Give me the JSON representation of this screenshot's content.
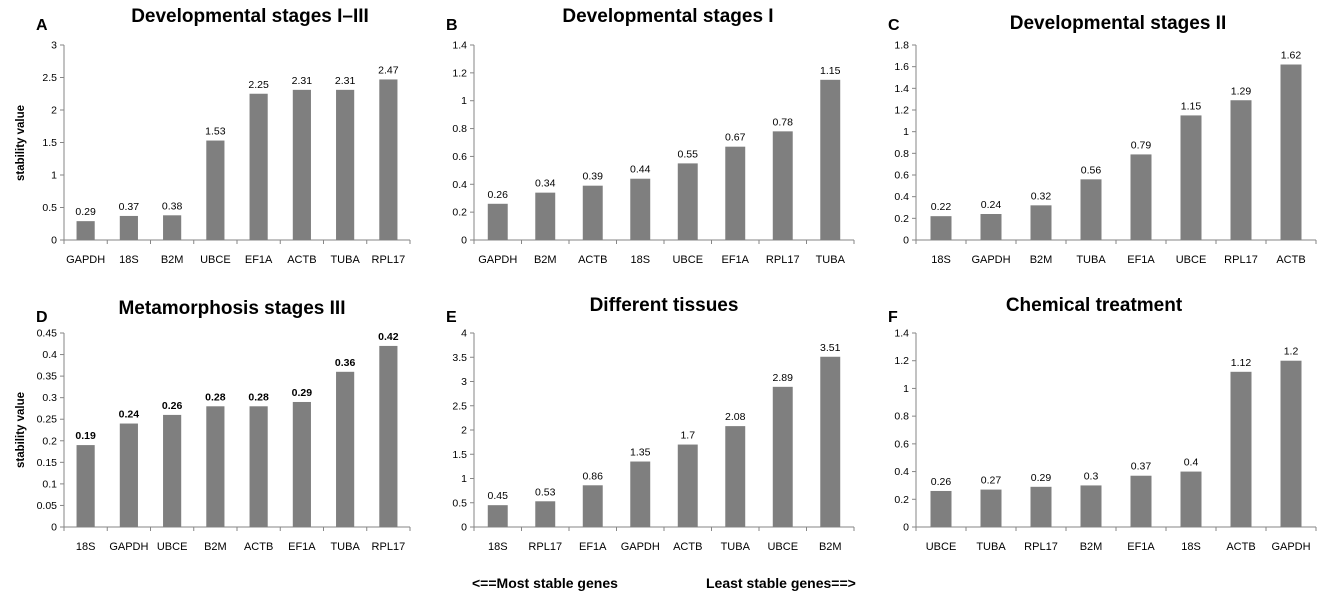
{
  "colors": {
    "bar": "#7f7f7f",
    "axis": "#868686",
    "text": "#000000"
  },
  "footnote": {
    "left": "<==Most stable genes",
    "right": "Least stable genes==>"
  },
  "chart_data": [
    {
      "panel": "A",
      "type": "bar",
      "title": "Developmental stages I–III",
      "ylabel": "stability value",
      "ylim": [
        0,
        3
      ],
      "ystep": 0.5,
      "yticks": [
        "0",
        "0.5",
        "1",
        "1.5",
        "2",
        "2.5",
        "3"
      ],
      "categories": [
        "GAPDH",
        "18S",
        "B2M",
        "UBCE",
        "EF1A",
        "ACTB",
        "TUBA",
        "RPL17"
      ],
      "values": [
        0.29,
        0.37,
        0.38,
        1.53,
        2.25,
        2.31,
        2.31,
        2.47
      ],
      "labels": [
        "0.29",
        "0.37",
        "0.38",
        "1.53",
        "2.25",
        "2.31",
        "2.31",
        "2.47"
      ],
      "bold_labels": false,
      "grid": false
    },
    {
      "panel": "B",
      "type": "bar",
      "title": "Developmental stages I",
      "ylabel": "",
      "ylim": [
        0,
        1.4
      ],
      "ystep": 0.2,
      "yticks": [
        "0",
        "0.2",
        "0.4",
        "0.6",
        "0.8",
        "1",
        "1.2",
        "1.4"
      ],
      "categories": [
        "GAPDH",
        "B2M",
        "ACTB",
        "18S",
        "UBCE",
        "EF1A",
        "RPL17",
        "TUBA"
      ],
      "values": [
        0.26,
        0.34,
        0.39,
        0.44,
        0.55,
        0.67,
        0.78,
        1.15
      ],
      "labels": [
        "0.26",
        "0.34",
        "0.39",
        "0.44",
        "0.55",
        "0.67",
        "0.78",
        "1.15"
      ],
      "bold_labels": false,
      "grid": false
    },
    {
      "panel": "C",
      "type": "bar",
      "title": "Developmental stages II",
      "ylabel": "",
      "ylim": [
        0,
        1.8
      ],
      "ystep": 0.2,
      "yticks": [
        "0",
        "0.2",
        "0.4",
        "0.6",
        "0.8",
        "1",
        "1.2",
        "1.4",
        "1.6",
        "1.8"
      ],
      "categories": [
        "18S",
        "GAPDH",
        "B2M",
        "TUBA",
        "EF1A",
        "UBCE",
        "RPL17",
        "ACTB"
      ],
      "values": [
        0.22,
        0.24,
        0.32,
        0.56,
        0.79,
        1.15,
        1.29,
        1.62
      ],
      "labels": [
        "0.22",
        "0.24",
        "0.32",
        "0.56",
        "0.79",
        "1.15",
        "1.29",
        "1.62"
      ],
      "bold_labels": false,
      "grid": false
    },
    {
      "panel": "D",
      "type": "bar",
      "title": "Metamorphosis stages III",
      "ylabel": "stability value",
      "ylim": [
        0,
        0.45
      ],
      "ystep": 0.05,
      "yticks": [
        "0",
        "0.05",
        "0.1",
        "0.15",
        "0.2",
        "0.25",
        "0.3",
        "0.35",
        "0.4",
        "0.45"
      ],
      "categories": [
        "18S",
        "GAPDH",
        "UBCE",
        "B2M",
        "ACTB",
        "EF1A",
        "TUBA",
        "RPL17"
      ],
      "values": [
        0.19,
        0.24,
        0.26,
        0.28,
        0.28,
        0.29,
        0.36,
        0.42
      ],
      "labels": [
        "0.19",
        "0.24",
        "0.26",
        "0.28",
        "0.28",
        "0.29",
        "0.36",
        "0.42"
      ],
      "bold_labels": true,
      "grid": false
    },
    {
      "panel": "E",
      "type": "bar",
      "title": "Different tissues",
      "ylabel": "",
      "ylim": [
        0,
        4
      ],
      "ystep": 0.5,
      "yticks": [
        "0",
        "0.5",
        "1",
        "1.5",
        "2",
        "2.5",
        "3",
        "3.5",
        "4"
      ],
      "categories": [
        "18S",
        "RPL17",
        "EF1A",
        "GAPDH",
        "ACTB",
        "TUBA",
        "UBCE",
        "B2M"
      ],
      "values": [
        0.45,
        0.53,
        0.86,
        1.35,
        1.7,
        2.08,
        2.89,
        3.51
      ],
      "labels": [
        "0.45",
        "0.53",
        "0.86",
        "1.35",
        "1.7",
        "2.08",
        "2.89",
        "3.51"
      ],
      "bold_labels": false,
      "grid": false
    },
    {
      "panel": "F",
      "type": "bar",
      "title": "Chemical treatment",
      "ylabel": "",
      "ylim": [
        0,
        1.4
      ],
      "ystep": 0.2,
      "yticks": [
        "0",
        "0.2",
        "0.4",
        "0.6",
        "0.8",
        "1",
        "1.2",
        "1.4"
      ],
      "categories": [
        "UBCE",
        "TUBA",
        "RPL17",
        "B2M",
        "EF1A",
        "18S",
        "ACTB",
        "GAPDH"
      ],
      "values": [
        0.26,
        0.27,
        0.29,
        0.3,
        0.37,
        0.4,
        1.12,
        1.2
      ],
      "labels": [
        "0.26",
        "0.27",
        "0.29",
        "0.3",
        "0.37",
        "0.4",
        "1.12",
        "1.2"
      ],
      "bold_labels": false,
      "grid": false
    }
  ]
}
